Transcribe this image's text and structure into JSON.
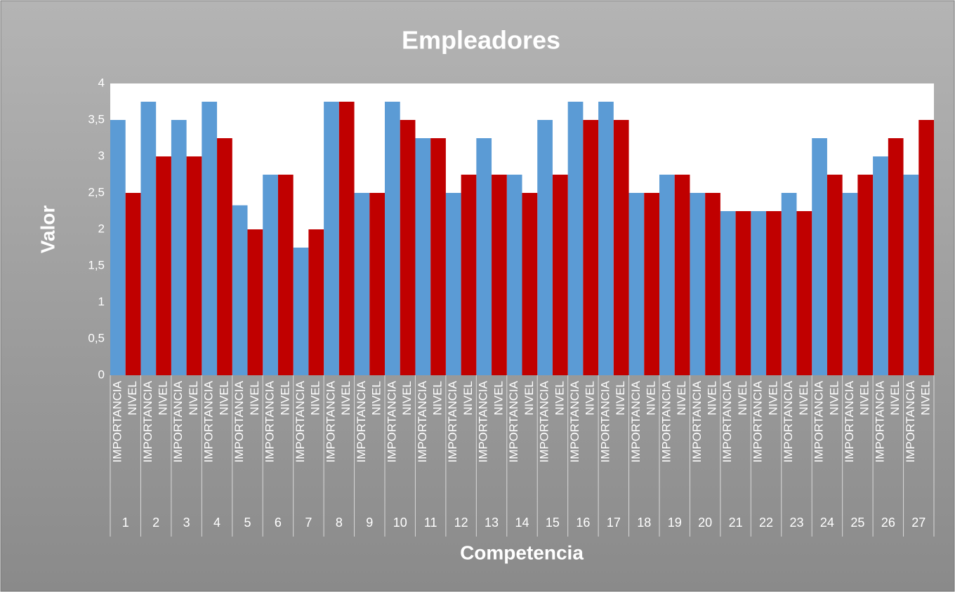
{
  "chart_data": {
    "type": "bar",
    "title": "Empleadores",
    "x_label": "Competencia",
    "y_label": "Valor",
    "categories": [
      "1",
      "2",
      "3",
      "4",
      "5",
      "6",
      "7",
      "8",
      "9",
      "10",
      "11",
      "12",
      "13",
      "14",
      "15",
      "16",
      "17",
      "18",
      "19",
      "20",
      "21",
      "22",
      "23",
      "24",
      "25",
      "26",
      "27"
    ],
    "series": [
      {
        "name": "IMPORTANCIA",
        "color": "#5b9bd5",
        "values": [
          3.5,
          3.75,
          3.5,
          3.75,
          2.33,
          2.75,
          1.75,
          3.75,
          2.5,
          3.75,
          3.25,
          2.5,
          3.25,
          2.75,
          3.5,
          3.75,
          3.75,
          2.5,
          2.75,
          2.5,
          2.25,
          2.25,
          2.5,
          3.25,
          2.5,
          3,
          2.75
        ]
      },
      {
        "name": "NIVEL",
        "color": "#c00000",
        "values": [
          2.5,
          3,
          3,
          3.25,
          2,
          2.75,
          2,
          3.75,
          2.5,
          3.5,
          3.25,
          2.75,
          2.75,
          2.5,
          2.75,
          3.5,
          3.5,
          2.5,
          2.75,
          2.5,
          2.25,
          2.25,
          2.25,
          2.75,
          2.75,
          3.25,
          3.5
        ]
      }
    ],
    "ylim": [
      0,
      4
    ],
    "yticks": [
      0,
      {
        "value": 0.5,
        "label": "0,5"
      },
      1,
      {
        "value": 1.5,
        "label": "1,5"
      },
      2,
      {
        "value": 2.5,
        "label": "2,5"
      },
      3,
      {
        "value": 3.5,
        "label": "3,5"
      },
      4
    ],
    "grid": false
  }
}
